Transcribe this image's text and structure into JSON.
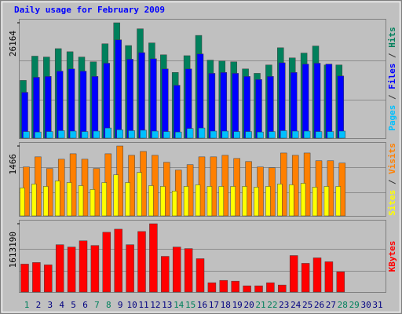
{
  "chart_data": [
    {
      "type": "bar",
      "title": "Daily usage for February 2009",
      "legend_separator": " / ",
      "ylim": [
        0,
        26164
      ],
      "yticks": [
        26164
      ],
      "series": [
        {
          "name": "Hits",
          "color": "#00805c",
          "values": [
            13100,
            18600,
            18400,
            20300,
            19600,
            18400,
            17300,
            21400,
            26164,
            21000,
            24800,
            21600,
            18900,
            14900,
            18700,
            23300,
            17700,
            17500,
            17300,
            15700,
            14700,
            16600,
            20500,
            18200,
            19300,
            20900,
            16600,
            16600,
            null,
            null,
            null
          ]
        },
        {
          "name": "Files",
          "color": "#0000ff",
          "values": [
            10400,
            13800,
            14000,
            15200,
            15700,
            15200,
            14000,
            17000,
            22300,
            17900,
            19400,
            18000,
            15700,
            12000,
            15700,
            19100,
            14700,
            14900,
            14700,
            14000,
            13300,
            14000,
            17100,
            14900,
            16800,
            17000,
            16800,
            14100,
            null,
            null,
            null
          ]
        },
        {
          "name": "Pages",
          "color": "#00c0ff",
          "values": [
            1500,
            1400,
            1500,
            1700,
            1600,
            1500,
            1600,
            2300,
            1900,
            1700,
            1800,
            1600,
            1500,
            1400,
            2200,
            2300,
            1600,
            1600,
            1500,
            1500,
            1400,
            1500,
            1700,
            1600,
            1600,
            1500,
            1500,
            1600,
            null,
            null,
            null
          ]
        }
      ]
    },
    {
      "type": "bar",
      "legend_separator": " / ",
      "ylim": [
        0,
        1466
      ],
      "yticks": [
        1466
      ],
      "series": [
        {
          "name": "Visits",
          "color": "#ff8000",
          "values": [
            1026,
            1238,
            994,
            1189,
            1303,
            1189,
            994,
            1303,
            1466,
            1271,
            1352,
            1271,
            1124,
            961,
            1075,
            1238,
            1238,
            1271,
            1205,
            1140,
            1026,
            1010,
            1319,
            1271,
            1319,
            1157,
            1157,
            1108,
            null,
            null,
            null
          ]
        },
        {
          "name": "Sites",
          "color": "#ffff00",
          "values": [
            587,
            668,
            619,
            733,
            700,
            635,
            554,
            700,
            863,
            700,
            912,
            635,
            619,
            521,
            619,
            652,
            619,
            619,
            619,
            619,
            603,
            619,
            668,
            652,
            684,
            603,
            619,
            619,
            null,
            null,
            null
          ]
        }
      ]
    },
    {
      "type": "bar",
      "ylim": [
        0,
        1613190
      ],
      "yticks": [
        1613190
      ],
      "categories": [
        "1",
        "2",
        "3",
        "4",
        "5",
        "6",
        "7",
        "8",
        "9",
        "10",
        "11",
        "12",
        "13",
        "14",
        "15",
        "16",
        "17",
        "18",
        "19",
        "20",
        "21",
        "22",
        "23",
        "24",
        "25",
        "26",
        "27",
        "28",
        "29",
        "30",
        "31"
      ],
      "category_colors": [
        "#00805c",
        "#000080",
        "#000080",
        "#000080",
        "#000080",
        "#000080",
        "#00805c",
        "#00805c",
        "#000080",
        "#000080",
        "#000080",
        "#000080",
        "#000080",
        "#00805c",
        "#00805c",
        "#000080",
        "#000080",
        "#000080",
        "#000080",
        "#000080",
        "#00805c",
        "#00805c",
        "#000080",
        "#000080",
        "#000080",
        "#000080",
        "#000080",
        "#00805c",
        "#00805c",
        "#000080",
        "#000080"
      ],
      "series": [
        {
          "name": "KBytes",
          "color": "#ff0000",
          "values": [
            660000,
            697000,
            642000,
            1118000,
            1063000,
            1210000,
            1100000,
            1412000,
            1485000,
            1118000,
            1430000,
            1613190,
            843000,
            1063000,
            1027000,
            788000,
            220000,
            275000,
            257000,
            147000,
            147000,
            220000,
            165000,
            862000,
            678000,
            807000,
            715000,
            477000,
            null,
            null,
            null
          ]
        }
      ]
    }
  ]
}
